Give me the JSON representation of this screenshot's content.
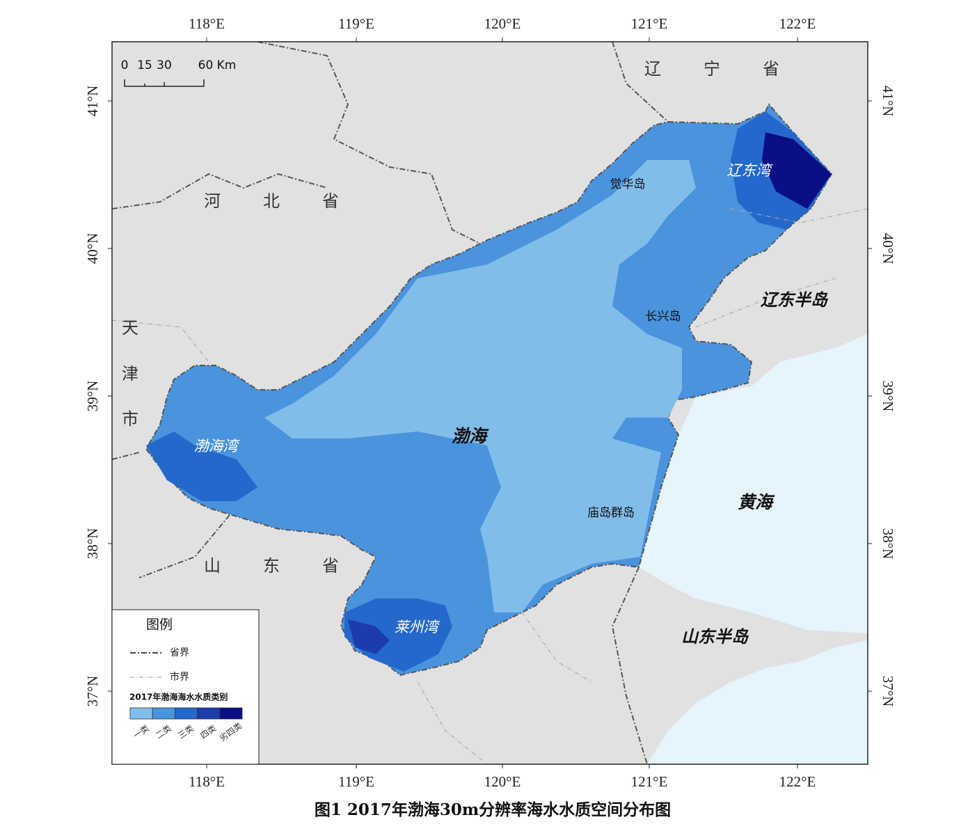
{
  "map": {
    "caption": "图1 2017年渤海30m分辨率海水水质空间分布图",
    "lon_labels": [
      "118°E",
      "119°E",
      "120°E",
      "121°E",
      "122°E"
    ],
    "lat_labels": [
      "41°N",
      "40°N",
      "39°N",
      "38°N",
      "37°N"
    ]
  },
  "scale_bar": {
    "labels": [
      "0",
      "15",
      "30",
      "60 Km"
    ]
  },
  "place_labels": [
    "辽",
    "宁",
    "省",
    "河",
    "北",
    "省",
    "天",
    "津",
    "市",
    "山",
    "东",
    "省",
    "辽东半岛",
    "山东半岛",
    "黄海",
    "渤海",
    "渤海湾",
    "辽东湾",
    "莱州湾",
    "觉华岛",
    "长兴岛",
    "庙岛群岛"
  ],
  "legend": {
    "title": "图例",
    "boundaries": [
      "省界",
      "市界"
    ],
    "class_title": "2017年渤海海水水质类别",
    "classes": [
      {
        "label": "一类",
        "color": "#80bde9"
      },
      {
        "label": "二类",
        "color": "#4a93dd"
      },
      {
        "label": "三类",
        "color": "#2468cc"
      },
      {
        "label": "四类",
        "color": "#1c3cad"
      },
      {
        "label": "劣四类",
        "color": "#0a0f86"
      }
    ]
  }
}
